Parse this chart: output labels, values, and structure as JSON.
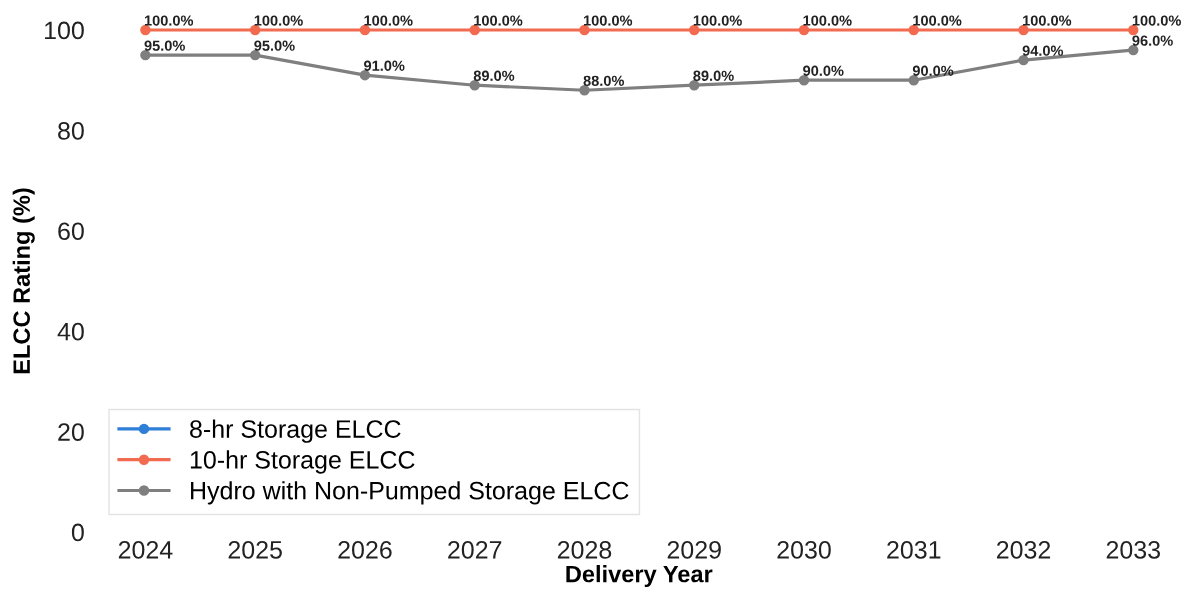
{
  "chart_data": {
    "type": "line",
    "xlabel": "Delivery Year",
    "ylabel": "ELCC Rating (%)",
    "categories": [
      "2024",
      "2025",
      "2026",
      "2027",
      "2028",
      "2029",
      "2030",
      "2031",
      "2032",
      "2033"
    ],
    "series": [
      {
        "name": "8-hr Storage ELCC",
        "color": "#2f7fd6",
        "values": [
          null,
          null,
          null,
          null,
          null,
          null,
          null,
          null,
          null,
          null
        ]
      },
      {
        "name": "10-hr Storage ELCC",
        "color": "#f26b50",
        "values": [
          100,
          100,
          100,
          100,
          100,
          100,
          100,
          100,
          100,
          100
        ],
        "value_labels": [
          "100.0%",
          "100.0%",
          "100.0%",
          "100.0%",
          "100.0%",
          "100.0%",
          "100.0%",
          "100.0%",
          "100.0%",
          "100.0%"
        ]
      },
      {
        "name": "Hydro with Non-Pumped Storage ELCC",
        "color": "#7f7f7f",
        "values": [
          95,
          95,
          91,
          89,
          88,
          89,
          90,
          90,
          94,
          96
        ],
        "value_labels": [
          "95.0%",
          "95.0%",
          "91.0%",
          "89.0%",
          "88.0%",
          "89.0%",
          "90.0%",
          "90.0%",
          "94.0%",
          "96.0%"
        ]
      }
    ],
    "ylim": [
      0,
      100
    ],
    "yticks": [
      0,
      20,
      40,
      60,
      80,
      100
    ],
    "grid": false,
    "legend": "bottom left",
    "marker": "circle",
    "line_style": "solid"
  }
}
